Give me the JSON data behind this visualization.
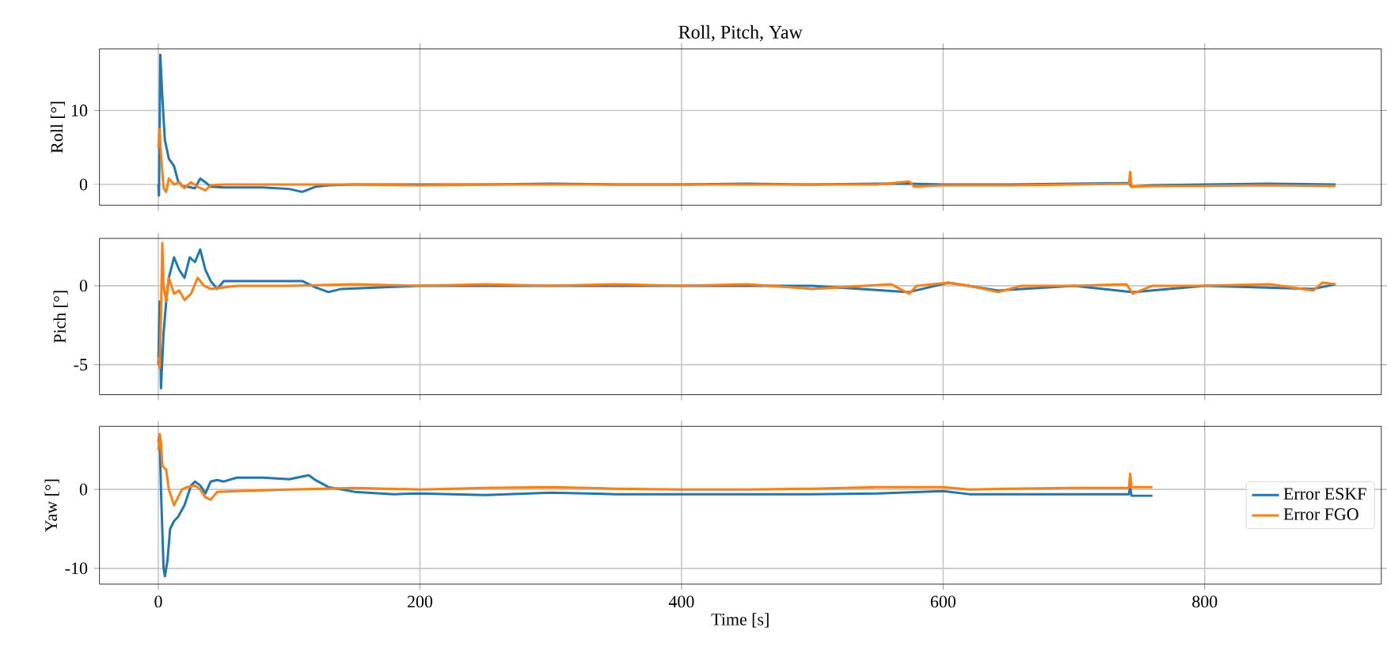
{
  "chart_data": [
    {
      "type": "line",
      "title": "Roll, Pitch, Yaw",
      "ylabel": "Roll [°]",
      "xlim": [
        -45,
        935
      ],
      "ylim": [
        -2.8,
        18.3
      ],
      "xticks": [
        0,
        200,
        400,
        600,
        800
      ],
      "yticks": [
        0,
        10
      ],
      "grid": true,
      "tick_labels": "y",
      "line_style": "solid",
      "marker": "none",
      "series": [
        {
          "color": "#1f77b4",
          "x": [
            0,
            0.5,
            1.5,
            3,
            5,
            8,
            12,
            15,
            18,
            22,
            28,
            32,
            36,
            40,
            50,
            60,
            80,
            90,
            100,
            110,
            120,
            130,
            150,
            200,
            250,
            300,
            350,
            400,
            450,
            500,
            550,
            574,
            600,
            650,
            700,
            742,
            744,
            760,
            800,
            850,
            900
          ],
          "values": [
            0,
            -1.5,
            17.5,
            12,
            6,
            3.5,
            2.5,
            0.5,
            -0.2,
            -0.3,
            -0.5,
            0.8,
            0.3,
            -0.3,
            -0.4,
            -0.4,
            -0.4,
            -0.5,
            -0.6,
            -1.0,
            -0.3,
            -0.1,
            0,
            0,
            0,
            0.1,
            0,
            0,
            0.1,
            0,
            0.1,
            0.1,
            0,
            0,
            0.1,
            0.2,
            -0.3,
            -0.1,
            0,
            0.1,
            0
          ]
        },
        {
          "color": "#ff7f0e",
          "x": [
            0,
            1,
            2,
            4,
            6,
            8,
            12,
            16,
            20,
            25,
            30,
            36,
            40,
            50,
            100,
            150,
            200,
            250,
            300,
            350,
            400,
            450,
            500,
            550,
            574,
            578,
            600,
            650,
            700,
            742,
            743,
            744,
            760,
            800,
            850,
            900
          ],
          "values": [
            5,
            7.5,
            4,
            -0.5,
            -1,
            0.8,
            0,
            0.3,
            -0.5,
            0.3,
            -0.3,
            -0.8,
            -0.1,
            0,
            0,
            0,
            -0.1,
            0,
            0,
            0,
            0,
            0,
            0,
            0,
            0.4,
            -0.3,
            -0.1,
            -0.1,
            0,
            0.1,
            1.7,
            -0.3,
            -0.2,
            -0.2,
            -0.1,
            -0.2
          ]
        }
      ]
    },
    {
      "type": "line",
      "ylabel": "Pich [°]",
      "xlim": [
        -45,
        935
      ],
      "ylim": [
        -6.9,
        3.0
      ],
      "xticks": [
        0,
        200,
        400,
        600,
        800
      ],
      "yticks": [
        -5,
        0
      ],
      "grid": true,
      "tick_labels": "y",
      "line_style": "solid",
      "marker": "none",
      "series": [
        {
          "color": "#1f77b4",
          "x": [
            0,
            1,
            2,
            4,
            6,
            8,
            12,
            16,
            20,
            24,
            28,
            32,
            36,
            40,
            45,
            50,
            80,
            110,
            120,
            130,
            140,
            200,
            250,
            300,
            400,
            500,
            574,
            604,
            642,
            700,
            745,
            800,
            883,
            900
          ],
          "values": [
            -5,
            -1,
            -6.5,
            -3,
            -1,
            0.5,
            1.8,
            1,
            0.5,
            1.8,
            1.5,
            2.3,
            1,
            0.3,
            -0.2,
            0.3,
            0.3,
            0.3,
            -0.1,
            -0.4,
            -0.2,
            0,
            0,
            0,
            0,
            0,
            -0.4,
            0.2,
            -0.3,
            0,
            -0.4,
            0,
            -0.2,
            0.1
          ]
        },
        {
          "color": "#ff7f0e",
          "x": [
            0,
            1,
            2,
            3,
            4,
            6,
            8,
            12,
            16,
            20,
            25,
            30,
            35,
            40,
            60,
            100,
            150,
            200,
            250,
            300,
            350,
            400,
            450,
            500,
            560,
            574,
            580,
            604,
            620,
            642,
            660,
            700,
            740,
            745,
            760,
            800,
            850,
            883,
            890,
            900
          ],
          "values": [
            -4.5,
            -5.2,
            -2,
            2.7,
            0,
            -1,
            0.5,
            -0.5,
            -0.3,
            -0.9,
            -0.5,
            0.5,
            0,
            -0.2,
            0,
            0,
            0.1,
            0,
            0.1,
            0,
            0.1,
            0,
            0.1,
            -0.2,
            0.1,
            -0.5,
            0,
            0.2,
            0,
            -0.4,
            0,
            0,
            0.1,
            -0.5,
            0,
            0,
            0.1,
            -0.3,
            0.2,
            0.1
          ]
        }
      ]
    },
    {
      "type": "line",
      "ylabel": "Yaw [°]",
      "xlabel": "Time [s]",
      "xlim": [
        -45,
        935
      ],
      "ylim": [
        -12,
        8
      ],
      "xticks": [
        0,
        200,
        400,
        600,
        800
      ],
      "yticks": [
        -10,
        0
      ],
      "grid": true,
      "legend": "right",
      "line_style": "solid",
      "marker": "none",
      "series": [
        {
          "name": "Error ESKF",
          "color": "#1f77b4",
          "x": [
            0,
            1,
            2,
            3,
            4,
            5,
            7,
            9,
            12,
            15,
            20,
            25,
            28,
            32,
            36,
            40,
            45,
            50,
            60,
            80,
            100,
            115,
            120,
            130,
            150,
            180,
            200,
            250,
            300,
            350,
            400,
            450,
            500,
            550,
            600,
            620,
            650,
            700,
            742,
            743,
            744,
            760
          ],
          "values": [
            6,
            7,
            0,
            -5,
            -10,
            -11,
            -9,
            -5,
            -4,
            -3.5,
            -2,
            0.5,
            1,
            0.5,
            -0.5,
            1,
            1.2,
            1,
            1.5,
            1.5,
            1.3,
            1.8,
            1.2,
            0.3,
            -0.3,
            -0.6,
            -0.5,
            -0.7,
            -0.4,
            -0.6,
            -0.6,
            -0.6,
            -0.6,
            -0.5,
            -0.2,
            -0.6,
            -0.6,
            -0.6,
            -0.6,
            0.3,
            -0.8,
            -0.8
          ]
        },
        {
          "name": "Error FGO",
          "color": "#ff7f0e",
          "x": [
            0,
            1,
            2,
            3,
            6,
            8,
            10,
            12,
            15,
            18,
            22,
            28,
            32,
            36,
            40,
            45,
            60,
            100,
            150,
            200,
            250,
            300,
            350,
            400,
            450,
            500,
            550,
            600,
            620,
            650,
            700,
            742,
            743,
            744,
            760
          ],
          "values": [
            5,
            7,
            6,
            3,
            2.5,
            0,
            -1,
            -2,
            -1,
            0,
            0.3,
            0.5,
            0,
            -1,
            -1.3,
            -0.3,
            -0.2,
            0,
            0.2,
            0,
            0.2,
            0.3,
            0.1,
            0,
            0,
            0.1,
            0.3,
            0.3,
            0,
            0.1,
            0.2,
            0.2,
            2,
            0.3,
            0.3
          ]
        }
      ]
    }
  ]
}
